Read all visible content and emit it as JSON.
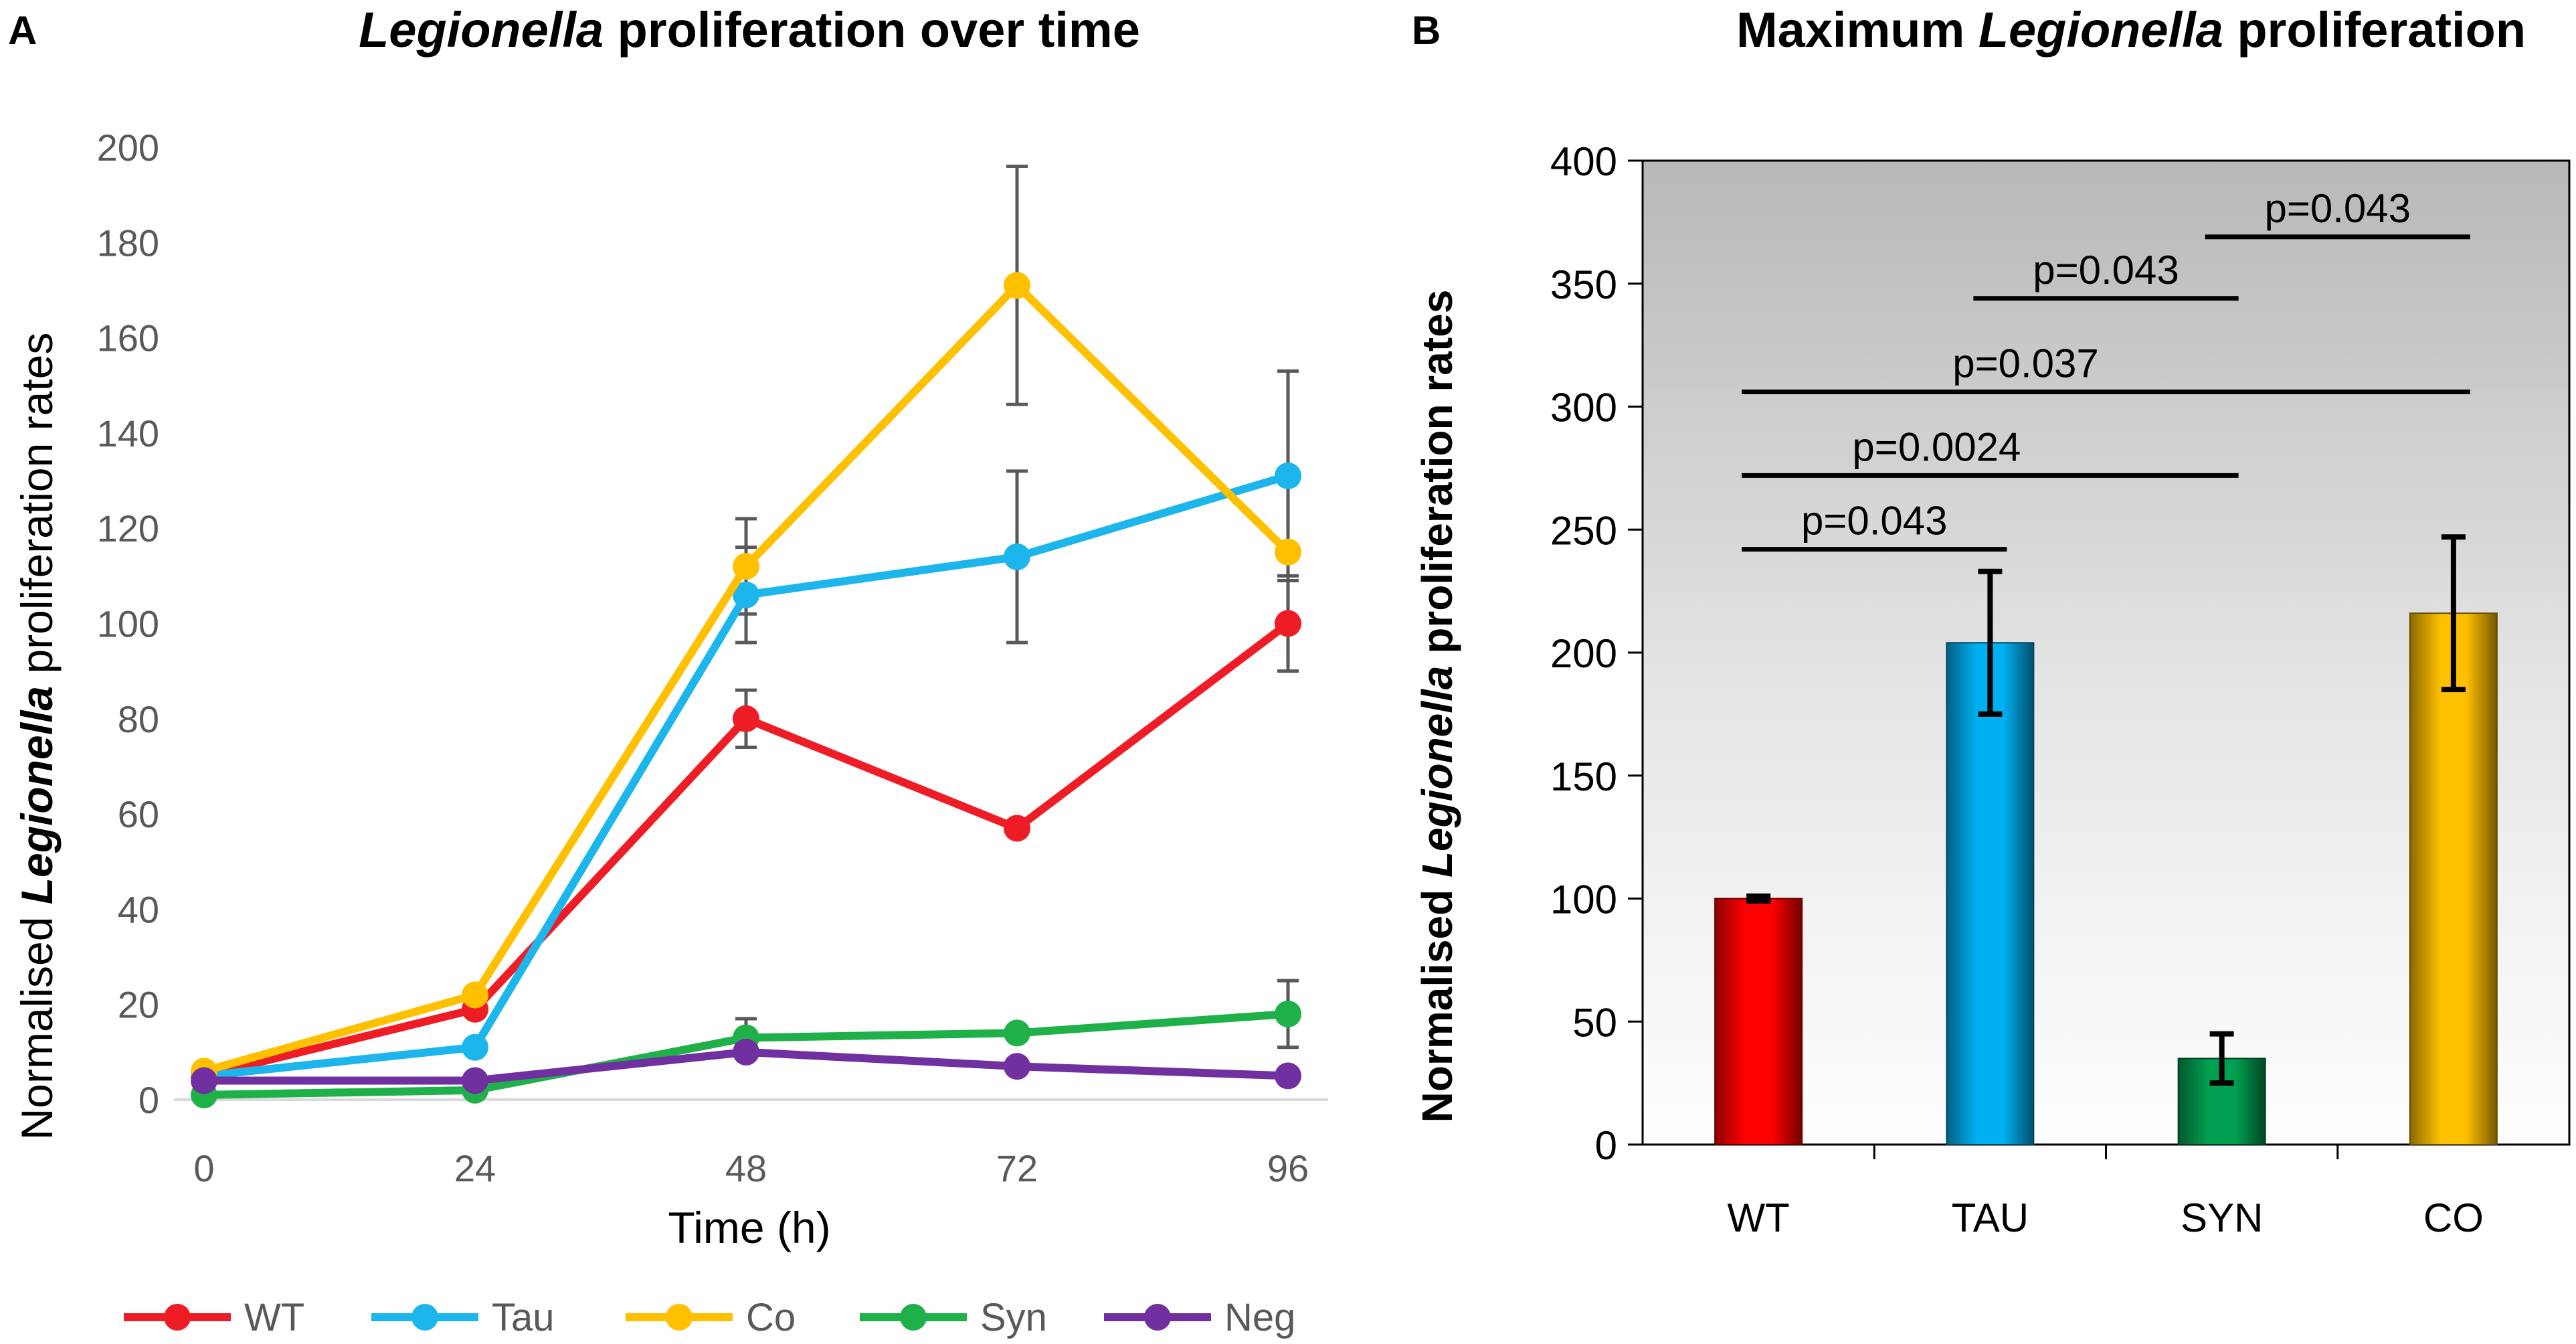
{
  "panel_a": {
    "letter": "A",
    "title_italic": "Legionella",
    "title_rest": " proliferation over time",
    "ylabel_pre": "Normalised ",
    "ylabel_italic": "Legionella",
    "ylabel_post": " proliferation rates",
    "xlabel": "Time (h)"
  },
  "panel_b": {
    "letter": "B",
    "title_pre": "Maximum ",
    "title_italic": "Legionella",
    "title_post": " proliferation",
    "ylabel_pre": "Normalised  ",
    "ylabel_italic": "Legionella",
    "ylabel_post": " proliferation rates"
  },
  "chart_data": [
    {
      "type": "line",
      "title": "Legionella proliferation over time",
      "xlabel": "Time (h)",
      "ylabel": "Normalised Legionella proliferation rates",
      "x": [
        0,
        24,
        48,
        72,
        96
      ],
      "xticks": [
        "0",
        "24",
        "48",
        "72",
        "96"
      ],
      "ylim": [
        0,
        200
      ],
      "yticks": [
        "0",
        "20",
        "40",
        "60",
        "80",
        "100",
        "120",
        "140",
        "160",
        "180",
        "200"
      ],
      "legend_position": "bottom",
      "series": [
        {
          "name": "WT",
          "color": "#ee1c25",
          "values": [
            5,
            19,
            80,
            57,
            100
          ],
          "errors": [
            0,
            0,
            6,
            0,
            10
          ]
        },
        {
          "name": "Tau",
          "color": "#1cb5ec",
          "values": [
            5,
            11,
            106,
            114,
            131
          ],
          "errors": [
            0,
            0,
            10,
            18,
            22
          ]
        },
        {
          "name": "Co",
          "color": "#ffc000",
          "values": [
            6,
            22,
            112,
            171,
            115
          ],
          "errors": [
            0,
            0,
            10,
            25,
            0
          ]
        },
        {
          "name": "Syn",
          "color": "#1fb04a",
          "values": [
            1,
            2,
            13,
            14,
            18
          ],
          "errors": [
            0,
            0,
            4,
            0,
            7
          ]
        },
        {
          "name": "Neg",
          "color": "#7030a0",
          "values": [
            4,
            4,
            10,
            7,
            5
          ],
          "errors": [
            0,
            0,
            0,
            0,
            0
          ]
        }
      ]
    },
    {
      "type": "bar",
      "title": "Maximum Legionella proliferation",
      "xlabel": "",
      "ylabel": "Normalised Legionella proliferation rates",
      "categories": [
        "WT",
        "TAU",
        "SYN",
        "CO"
      ],
      "values": [
        100,
        204,
        35,
        216
      ],
      "errors": [
        1,
        29,
        10,
        31
      ],
      "colors": [
        "#ff0000",
        "#00b0f0",
        "#00a050",
        "#ffc000"
      ],
      "ylim": [
        0,
        400
      ],
      "yticks": [
        "0",
        "50",
        "100",
        "150",
        "200",
        "250",
        "300",
        "350",
        "400"
      ],
      "significance": [
        {
          "label": "p=0.043",
          "from": "WT",
          "to": "TAU",
          "level": 242
        },
        {
          "label": "p=0.0024",
          "from": "WT",
          "to": "SYN",
          "level": 272
        },
        {
          "label": "p=0.037",
          "from": "WT",
          "to": "CO",
          "level": 306
        },
        {
          "label": "p=0.043",
          "from": "TAU",
          "to": "SYN",
          "level": 344
        },
        {
          "label": "p=0.043",
          "from": "SYN",
          "to": "CO",
          "level": 369
        }
      ]
    }
  ]
}
